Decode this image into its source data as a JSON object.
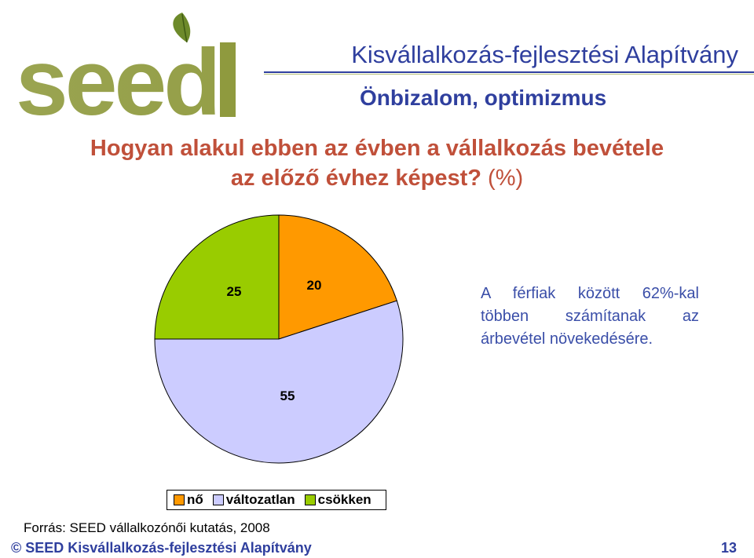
{
  "logo": {
    "text": "seed",
    "color": "#8f9a3e",
    "leaf_color": "#6d8a2a"
  },
  "header": {
    "org_title": "Kisvállalkozás-fejlesztési Alapítvány",
    "subtitle": "Önbizalom, optimizmus"
  },
  "question": {
    "line1": "Hogyan alakul ebben az évben a vállalkozás bevétele",
    "line2": "az előző évhez képest?",
    "unit": "(%)"
  },
  "chart_data": {
    "type": "pie",
    "series": [
      {
        "name": "nő",
        "value": 20,
        "color": "#ff9900"
      },
      {
        "name": "változatlan",
        "value": 55,
        "color": "#ccccff"
      },
      {
        "name": "csökken",
        "value": 25,
        "color": "#99cc00"
      }
    ],
    "start_angle_deg": 0,
    "legend_position": "bottom",
    "data_labels": [
      "20",
      "55",
      "25"
    ]
  },
  "note": {
    "line1": "A férfiak között 62%-kal",
    "line2": "többen számítanak az",
    "line3": "árbevétel növekedésére."
  },
  "legend": {
    "items": [
      "nő",
      "változatlan",
      "csökken"
    ]
  },
  "source": "Forrás: SEED vállalkozónői kutatás, 2008",
  "footer": {
    "left": "© SEED Kisvállalkozás-fejlesztési Alapítvány",
    "page_number": "13"
  }
}
